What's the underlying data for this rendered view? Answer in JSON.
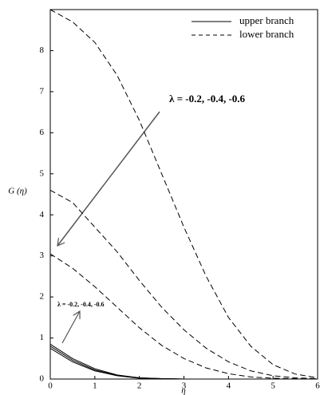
{
  "chart_data": {
    "type": "line",
    "x_label": "η",
    "y_label": "G (η)",
    "x": [
      0,
      0.5,
      1,
      1.5,
      2,
      2.5,
      3,
      3.5,
      4,
      4.5,
      5,
      5.5,
      6
    ],
    "series": [
      {
        "style": "dashed",
        "color": "#000000",
        "values": [
          9.0,
          8.7,
          8.2,
          7.4,
          6.3,
          5.0,
          3.7,
          2.5,
          1.5,
          0.8,
          0.35,
          0.12,
          0.03
        ]
      },
      {
        "style": "dashed",
        "color": "#000000",
        "values": [
          4.6,
          4.3,
          3.7,
          3.1,
          2.4,
          1.75,
          1.2,
          0.75,
          0.42,
          0.2,
          0.08,
          0.03,
          0.01
        ]
      },
      {
        "style": "dashed",
        "color": "#000000",
        "values": [
          3.05,
          2.7,
          2.25,
          1.75,
          1.25,
          0.82,
          0.5,
          0.27,
          0.13,
          0.05,
          0.02,
          0.01,
          0
        ]
      },
      {
        "style": "solid",
        "color": "#000000",
        "values": [
          0.85,
          0.5,
          0.25,
          0.1,
          0.03,
          0.01,
          0,
          0,
          0,
          0,
          0,
          0,
          0
        ]
      },
      {
        "style": "solid",
        "color": "#000000",
        "values": [
          0.8,
          0.46,
          0.22,
          0.09,
          0.03,
          0.01,
          0,
          0,
          0,
          0,
          0,
          0,
          0
        ]
      },
      {
        "style": "solid",
        "color": "#000000",
        "values": [
          0.75,
          0.42,
          0.2,
          0.08,
          0.02,
          0.01,
          0,
          0,
          0,
          0,
          0,
          0,
          0
        ]
      }
    ],
    "legend": [
      {
        "name": "upper branch",
        "style": "solid"
      },
      {
        "name": "lower branch",
        "style": "dashed"
      }
    ],
    "annotations": [
      "λ = -0.2, -0.4, -0.6",
      "λ = -0.2, -0.4, -0.6"
    ],
    "xlim": [
      0,
      6
    ],
    "xticks": [
      0,
      1,
      2,
      3,
      4,
      5,
      6
    ],
    "ylim": [
      0,
      9
    ],
    "yticks": [
      0,
      1,
      2,
      3,
      4,
      5,
      6,
      7,
      8
    ]
  }
}
